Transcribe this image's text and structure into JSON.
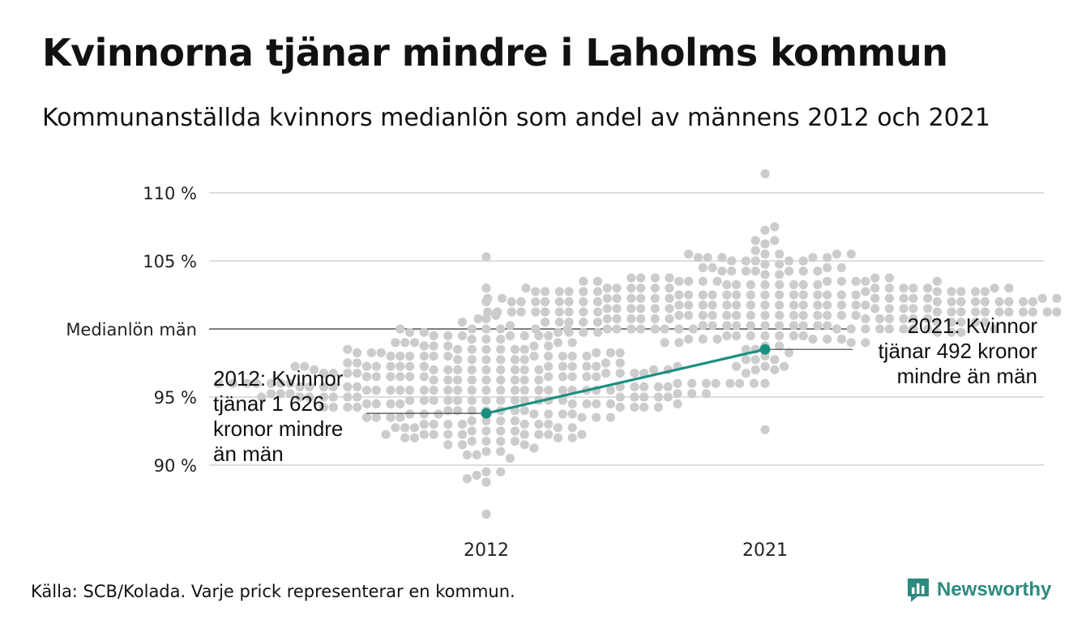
{
  "title": "Kvinnorna tjänar mindre i Laholms kommun",
  "subtitle": "Kommunanställda kvinnors medianlön som andel av männens 2012 och 2021",
  "source": "Källa: SCB/Kolada. Varje prick representerar en kommun.",
  "brand": {
    "name": "Newsworthy",
    "icon": "newsworthy-logo-icon",
    "color": "#2e8a7f"
  },
  "colors": {
    "dots": "#cccccc",
    "highlight": "#1a8f80",
    "grid": "#dedede",
    "reference": "#333333"
  },
  "chart_data": {
    "type": "scatter",
    "subtype": "beeswarm",
    "categories": [
      "2012",
      "2021"
    ],
    "ylim": [
      86,
      111.5
    ],
    "yticks": [
      {
        "value": 90,
        "label": "90 %"
      },
      {
        "value": 95,
        "label": "95 %"
      },
      {
        "value": 105,
        "label": "105 %"
      },
      {
        "value": 110,
        "label": "110 %"
      }
    ],
    "reference_line": {
      "value": 100,
      "label": "Medianlön män"
    },
    "grid": true,
    "distribution": [
      {
        "category": "2012",
        "count": 290,
        "median": 95.6,
        "spread": 2.4,
        "min": 86.4,
        "max": 105.3
      },
      {
        "category": "2021",
        "count": 290,
        "median": 101.7,
        "spread": 2.0,
        "min": 92.6,
        "max": 111.4
      }
    ],
    "highlight_series": {
      "points": [
        {
          "x": "2012",
          "y": 93.8
        },
        {
          "x": "2021",
          "y": 98.5
        }
      ]
    },
    "annotations": [
      {
        "x": "2012",
        "y": 93.8,
        "lines": [
          "2012: Kvinnor",
          "tjänar 1 626",
          "kronor mindre",
          "än män"
        ]
      },
      {
        "x": "2021",
        "y": 98.5,
        "lines": [
          "2021: Kvinnor",
          "tjänar 492 kronor",
          "mindre än män"
        ]
      }
    ]
  }
}
